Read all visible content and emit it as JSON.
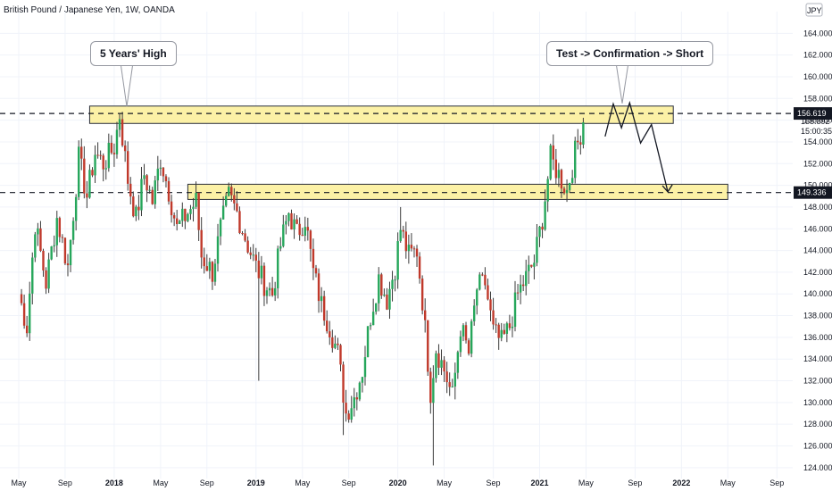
{
  "header": {
    "title": "British Pound / Japanese Yen, 1W, OANDA",
    "currency": "JPY"
  },
  "callouts": {
    "five_year_high": "5 Years' High",
    "plan": "Test -> Confirmation -> Short"
  },
  "colors": {
    "up": "#26a65b",
    "down": "#c0392b",
    "zone_fill": "#fcf1a6",
    "zone_border": "#2a2e39",
    "grid": "#f0f3fa",
    "level_tag": "#131722"
  },
  "price_readout": {
    "current": "155.892",
    "countdown": "15:00:35"
  },
  "chart_data": {
    "type": "candlestick",
    "symbol": "GBPJPY",
    "timeframe": "1W",
    "ylim": [
      123,
      166
    ],
    "y_ticks": [
      "124.000",
      "126.000",
      "128.000",
      "130.000",
      "132.000",
      "134.000",
      "136.000",
      "138.000",
      "140.000",
      "142.000",
      "144.000",
      "146.000",
      "148.000",
      "150.000",
      "152.000",
      "154.000",
      "156.000",
      "158.000",
      "160.000",
      "162.000",
      "164.000"
    ],
    "x_ticks": [
      "May",
      "Sep",
      "2018",
      "May",
      "Sep",
      "2019",
      "May",
      "Sep",
      "2020",
      "May",
      "Sep",
      "2021",
      "May",
      "Sep",
      "2022",
      "May",
      "Sep"
    ],
    "x_tick_weeks": [
      0,
      17,
      35,
      52,
      69,
      87,
      104,
      121,
      139,
      156,
      174,
      191,
      208,
      226,
      243,
      260,
      278
    ],
    "levels": [
      {
        "label": "156.619",
        "value": 156.619
      },
      {
        "label": "149.336",
        "value": 149.336
      }
    ],
    "zones": [
      {
        "from_week": 26,
        "to_week": 240,
        "low": 155.7,
        "high": 157.3
      },
      {
        "from_week": 62,
        "to_week": 260,
        "low": 148.7,
        "high": 150.1
      }
    ],
    "projection": [
      {
        "week": 215,
        "price": 154.5
      },
      {
        "week": 218,
        "price": 157.5
      },
      {
        "week": 221,
        "price": 155.3
      },
      {
        "week": 224,
        "price": 157.6
      },
      {
        "week": 228,
        "price": 153.9
      },
      {
        "week": 232,
        "price": 155.6
      },
      {
        "week": 238,
        "price": 149.4
      }
    ],
    "anchors": [
      [
        0,
        140.0
      ],
      [
        3,
        137.0
      ],
      [
        6,
        146.5
      ],
      [
        10,
        141.0
      ],
      [
        14,
        147.0
      ],
      [
        18,
        142.5
      ],
      [
        22,
        152.5
      ],
      [
        25,
        149.0
      ],
      [
        28,
        153.0
      ],
      [
        31,
        152.0
      ],
      [
        35,
        153.5
      ],
      [
        37,
        156.5
      ],
      [
        40,
        150.5
      ],
      [
        43,
        147.0
      ],
      [
        46,
        151.0
      ],
      [
        49,
        148.5
      ],
      [
        52,
        152.5
      ],
      [
        55,
        149.5
      ],
      [
        58,
        146.0
      ],
      [
        62,
        147.5
      ],
      [
        65,
        148.5
      ],
      [
        67,
        143.5
      ],
      [
        71,
        142.0
      ],
      [
        74,
        146.0
      ],
      [
        77,
        149.0
      ],
      [
        80,
        147.5
      ],
      [
        84,
        144.5
      ],
      [
        87,
        142.5
      ],
      [
        90,
        141.0
      ],
      [
        93,
        140.0
      ],
      [
        96,
        144.5
      ],
      [
        99,
        147.5
      ],
      [
        102,
        145.5
      ],
      [
        105,
        147.0
      ],
      [
        108,
        142.0
      ],
      [
        111,
        139.0
      ],
      [
        114,
        137.0
      ],
      [
        117,
        134.5
      ],
      [
        120,
        129.0
      ],
      [
        123,
        130.5
      ],
      [
        126,
        133.0
      ],
      [
        129,
        138.0
      ],
      [
        132,
        141.5
      ],
      [
        135,
        139.5
      ],
      [
        138,
        142.5
      ],
      [
        140,
        146.0
      ],
      [
        143,
        143.5
      ],
      [
        146,
        144.0
      ],
      [
        148,
        139.5
      ],
      [
        151,
        131.0
      ],
      [
        153,
        135.0
      ],
      [
        156,
        133.0
      ],
      [
        159,
        130.5
      ],
      [
        162,
        137.0
      ],
      [
        165,
        134.5
      ],
      [
        168,
        140.5
      ],
      [
        171,
        141.0
      ],
      [
        174,
        136.5
      ],
      [
        177,
        135.5
      ],
      [
        180,
        137.0
      ],
      [
        183,
        140.0
      ],
      [
        186,
        141.5
      ],
      [
        189,
        143.0
      ],
      [
        192,
        147.0
      ],
      [
        195,
        152.5
      ],
      [
        198,
        151.0
      ],
      [
        201,
        149.5
      ],
      [
        204,
        153.0
      ],
      [
        207,
        155.8
      ]
    ],
    "wick_lows": [
      [
        88,
        132.0
      ],
      [
        119,
        127.0
      ],
      [
        152,
        124.2
      ]
    ],
    "wick_highs": [
      [
        37,
        156.62
      ],
      [
        140,
        148.0
      ]
    ]
  }
}
